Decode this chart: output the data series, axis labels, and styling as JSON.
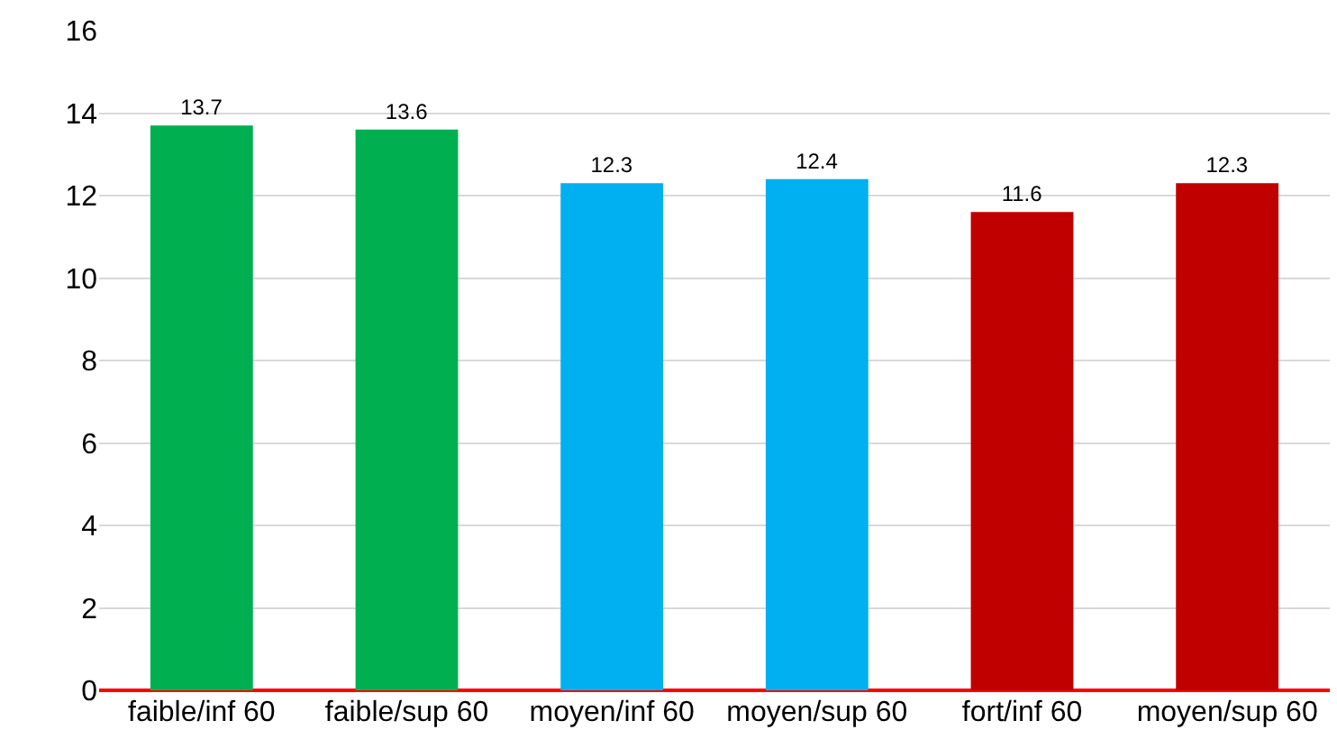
{
  "chart_data": {
    "type": "bar",
    "categories": [
      "faible/inf 60",
      "faible/sup 60",
      "moyen/inf 60",
      "moyen/sup 60",
      "fort/inf 60",
      "moyen/sup 60"
    ],
    "values": [
      13.7,
      13.6,
      12.3,
      12.4,
      11.6,
      12.3
    ],
    "colors": [
      "#00b050",
      "#00b050",
      "#00b0f0",
      "#00b0f0",
      "#c00000",
      "#c00000"
    ],
    "data_labels": true,
    "ylim": [
      0,
      16
    ],
    "yticks": [
      0,
      2,
      4,
      6,
      8,
      10,
      12,
      14,
      16
    ],
    "grid": "y"
  }
}
